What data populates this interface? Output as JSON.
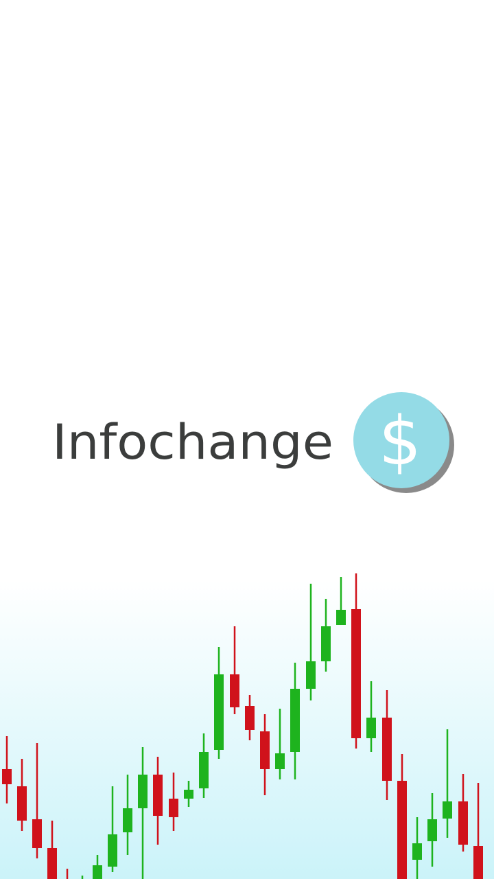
{
  "app_name": "Infochange",
  "logo_icon": "$"
}
